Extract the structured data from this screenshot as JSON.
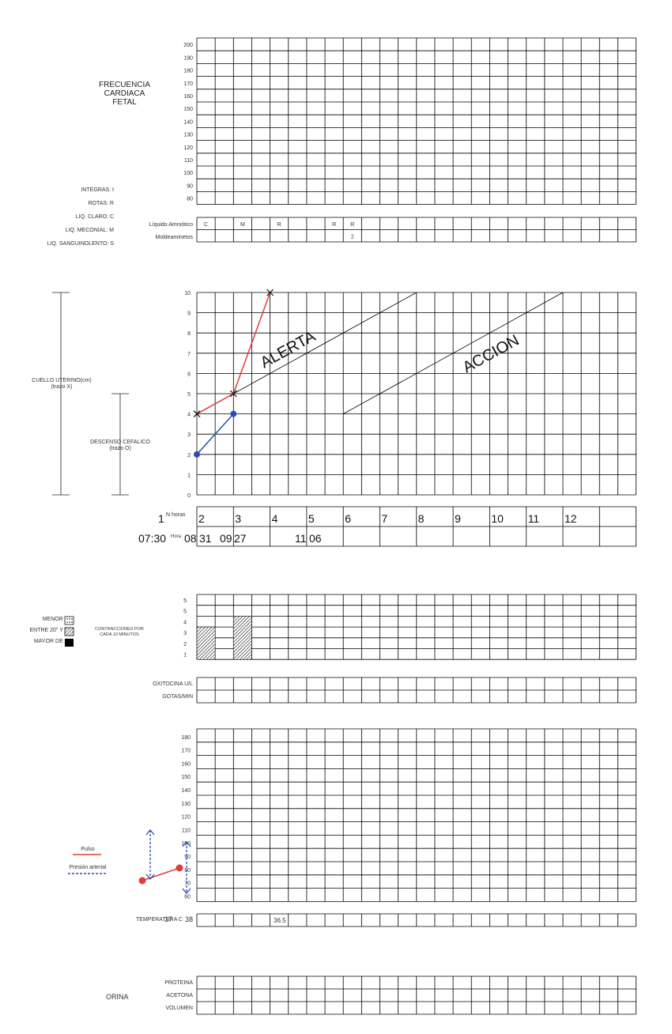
{
  "fhr": {
    "title_lines": [
      "FRECUENCIA",
      "CARDIACA",
      "FETAL"
    ],
    "ticks": [
      "200",
      "190",
      "180",
      "170",
      "160",
      "150",
      "140",
      "130",
      "120",
      "110",
      "100",
      "90",
      "80"
    ]
  },
  "liquid_legend": [
    "INTEGRAS: I",
    "ROTAS: R",
    "LIQ. CLARO: C",
    "LIQ. MECONIAL: M",
    "LIQ. SANGUINOLENTO: S"
  ],
  "amniotic": {
    "label": "Líquido Amniótico",
    "molding_label": "Moldeaminetos",
    "cells": [
      {
        "col": 0,
        "text": "C"
      },
      {
        "col": 2,
        "text": "M"
      },
      {
        "col": 4,
        "text": "R"
      },
      {
        "col": 7,
        "text": "R"
      },
      {
        "col": 8,
        "text": "R"
      }
    ],
    "molding": [
      {
        "col": 8,
        "text": "2"
      }
    ]
  },
  "partograph": {
    "ticks": [
      "10",
      "9",
      "8",
      "7",
      "6",
      "5",
      "4",
      "3",
      "2",
      "1",
      "0"
    ],
    "cervix_label": [
      "CUELLO UTERINO(cm)",
      "(trazo X)"
    ],
    "descent_label": [
      "DESCENSO CEFALICO",
      "(trazo O)"
    ],
    "alert_text": "ALERTA",
    "action_text": "ACCION",
    "cervix_points": [
      {
        "hour": 0,
        "cm": 4
      },
      {
        "hour": 2,
        "cm": 5
      },
      {
        "hour": 4,
        "cm": 10
      }
    ],
    "descent_points": [
      {
        "hour": 0,
        "cm": 2
      },
      {
        "hour": 2,
        "cm": 4
      }
    ],
    "alert_line": [
      {
        "hour": 2,
        "cm": 5
      },
      {
        "hour": 12,
        "cm": 10
      }
    ],
    "action_line": [
      {
        "hour": 8,
        "cm": 4
      },
      {
        "hour": 20,
        "cm": 10
      }
    ]
  },
  "hours": {
    "n_label": "N horas",
    "hora_label": "Hora",
    "numbers": [
      "1",
      "2",
      "3",
      "4",
      "5",
      "6",
      "7",
      "8",
      "9",
      "10",
      "11",
      "12"
    ],
    "times": [
      "07:30",
      "08",
      "31",
      "09",
      "27",
      "11",
      "06"
    ]
  },
  "contractions": {
    "ticks": [
      "5",
      "5",
      "4",
      "3",
      "2",
      "1"
    ],
    "legend": [
      "MENOR 20\"",
      "ENTRE 20\" Y 40\"",
      "MAYOR DE 40\""
    ],
    "label_lines": [
      "CONTRACCIONES POR",
      "CADA 10 MINUTOS"
    ],
    "bars": [
      {
        "col": 0,
        "count": 3
      },
      {
        "col": 2,
        "count": 4
      }
    ]
  },
  "oxytocin": {
    "rows": [
      "OXITOCINA U/L",
      "GOTAS/MIN"
    ]
  },
  "vitals": {
    "ticks": [
      "180",
      "170",
      "160",
      "150",
      "140",
      "130",
      "120",
      "110",
      "100",
      "90",
      "80",
      "70",
      "60"
    ],
    "pulse_label": "Pulso",
    "bp_label": "Presión arterial",
    "pulse_color": "#e23b3b",
    "bp_color": "#2b4fae"
  },
  "temperature": {
    "label": "TEMPERATURA C",
    "overlap": "37",
    "value_a": "38",
    "value_b": "36.5"
  },
  "urine": {
    "label": "ORINA",
    "rows": [
      "PROTEINA",
      "ACETONA",
      "VOLUMEN"
    ]
  }
}
